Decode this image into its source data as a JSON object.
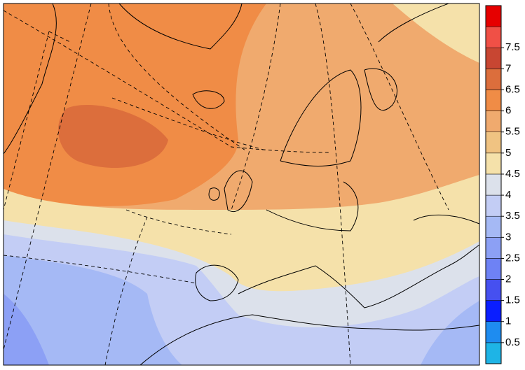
{
  "colorbar": {
    "levels": [
      0.5,
      1,
      1.5,
      2,
      2.5,
      3,
      3.5,
      4,
      4.5,
      5,
      5.5,
      6,
      6.5,
      7,
      7.5
    ],
    "colors": [
      "#1eb4e6",
      "#1e8cf0",
      "#0a1eff",
      "#4650f0",
      "#6e82f5",
      "#8ca0f5",
      "#a5b9f5",
      "#c3cdf5",
      "#dce1eb",
      "#f5e1aa",
      "#f0c382",
      "#f0aa6e",
      "#f08c46",
      "#dc6e3c",
      "#c84632",
      "#f05046",
      "#e60000"
    ]
  }
}
